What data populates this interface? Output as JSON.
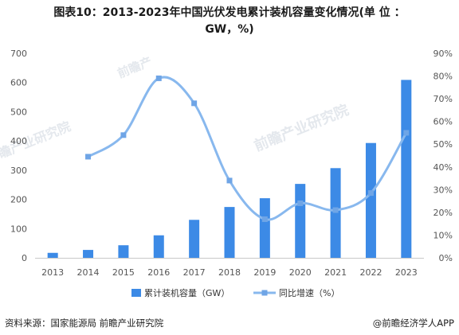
{
  "title_line1": "图表10：2013-2023年中国光伏发电累计装机容量变化情况(单  位  ：",
  "title_line2": "GW，%)",
  "source": "资料来源：国家能源局 前瞻产业研究院",
  "brand": "@前瞻经济学人APP",
  "watermarks": [
    "前瞻产",
    "前瞻产业研究院",
    "前瞻产业研究院"
  ],
  "colors": {
    "bar": "#3c8ae6",
    "line": "#88b8ee",
    "marker": "#6fa5e6",
    "axis": "#c8c8c8"
  },
  "chart_data": {
    "type": "bar",
    "categories": [
      "2013",
      "2014",
      "2015",
      "2016",
      "2017",
      "2018",
      "2019",
      "2020",
      "2021",
      "2022",
      "2023"
    ],
    "series": [
      {
        "name": "累计装机容量（GW）",
        "type": "bar",
        "axis": "left",
        "values": [
          17,
          27,
          43,
          77,
          130,
          174,
          204,
          253,
          307,
          393,
          609
        ]
      },
      {
        "name": "同比增速（%）",
        "type": "line",
        "axis": "right",
        "values": [
          null,
          44.5,
          54,
          79,
          68,
          34,
          17,
          24,
          21,
          28.5,
          55
        ]
      }
    ],
    "y_left": {
      "min": 0,
      "max": 700,
      "ticks": [
        "0",
        "100",
        "200",
        "300",
        "400",
        "500",
        "600",
        "700"
      ]
    },
    "y_right": {
      "min": 0,
      "max": 90,
      "ticks": [
        "0%",
        "10%",
        "20%",
        "30%",
        "40%",
        "50%",
        "60%",
        "70%",
        "80%",
        "90%"
      ]
    },
    "legend": "bottom-center",
    "grid": false
  }
}
